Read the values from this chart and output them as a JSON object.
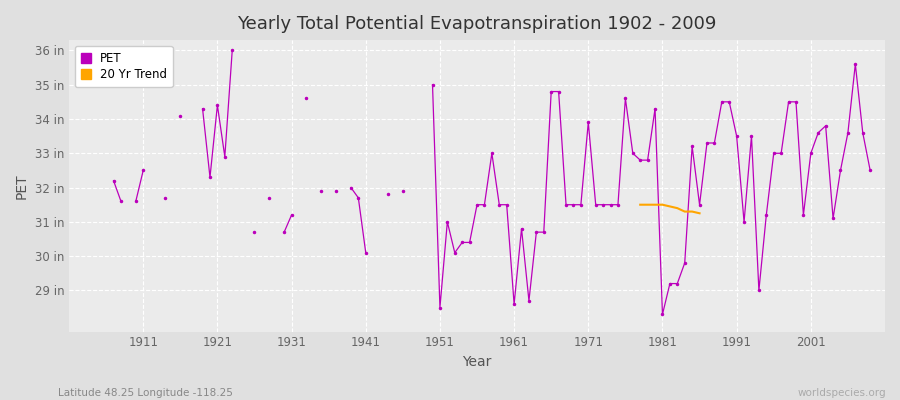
{
  "title": "Yearly Total Potential Evapotranspiration 1902 - 2009",
  "xlabel": "Year",
  "ylabel": "PET",
  "footnote_left": "Latitude 48.25 Longitude -118.25",
  "footnote_right": "worldspecies.org",
  "ylim_low": 27.8,
  "ylim_high": 36.3,
  "yticks": [
    29,
    30,
    31,
    32,
    33,
    34,
    35,
    36
  ],
  "ytick_labels": [
    "29 in",
    "30 in",
    "31 in",
    "32 in",
    "33 in",
    "34 in",
    "35 in",
    "36 in"
  ],
  "xlim_low": 1901,
  "xlim_high": 2011,
  "xtick_positions": [
    1911,
    1921,
    1931,
    1941,
    1951,
    1961,
    1971,
    1981,
    1991,
    2001
  ],
  "bg_color": "#e0e0e0",
  "plot_bg_color": "#ebebeb",
  "pet_color": "#bb00bb",
  "trend_color": "#ffa500",
  "pet_data": {
    "1907": 32.2,
    "1908": 31.6,
    "1910": 31.6,
    "1911": 32.5,
    "1914": 31.7,
    "1916": 34.1,
    "1919": 34.3,
    "1920": 32.3,
    "1921": 34.4,
    "1922": 32.9,
    "1923": 36.0,
    "1926": 30.7,
    "1928": 31.7,
    "1930": 30.7,
    "1931": 31.2,
    "1933": 34.6,
    "1935": 31.9,
    "1937": 31.9,
    "1939": 32.0,
    "1940": 31.7,
    "1941": 30.1,
    "1944": 31.8,
    "1946": 31.9,
    "1950": 35.0,
    "1951": 28.5,
    "1952": 31.0,
    "1953": 30.1,
    "1954": 30.4,
    "1955": 30.4,
    "1956": 31.5,
    "1957": 31.5,
    "1958": 33.0,
    "1959": 31.5,
    "1960": 31.5,
    "1961": 28.6,
    "1962": 30.8,
    "1963": 28.7,
    "1964": 30.7,
    "1965": 30.7,
    "1966": 34.8,
    "1967": 34.8,
    "1968": 31.5,
    "1969": 31.5,
    "1970": 31.5,
    "1971": 33.9,
    "1972": 31.5,
    "1973": 31.5,
    "1974": 31.5,
    "1975": 31.5,
    "1976": 34.6,
    "1977": 33.0,
    "1978": 32.8,
    "1979": 32.8,
    "1980": 34.3,
    "1981": 28.3,
    "1982": 29.2,
    "1983": 29.2,
    "1984": 29.8,
    "1985": 33.2,
    "1986": 31.5,
    "1987": 33.3,
    "1988": 33.3,
    "1989": 34.5,
    "1990": 34.5,
    "1991": 33.5,
    "1992": 31.0,
    "1993": 33.5,
    "1994": 29.0,
    "1995": 31.2,
    "1996": 33.0,
    "1997": 33.0,
    "1998": 34.5,
    "1999": 34.5,
    "2000": 31.2,
    "2001": 33.0,
    "2002": 33.6,
    "2003": 33.8,
    "2004": 31.1,
    "2005": 32.5,
    "2006": 33.6,
    "2007": 35.6,
    "2008": 33.6,
    "2009": 32.5
  },
  "trend_years": [
    1978,
    1979,
    1980,
    1981,
    1982,
    1983,
    1984,
    1985,
    1986
  ],
  "trend_values": [
    31.5,
    31.5,
    31.5,
    31.5,
    31.45,
    31.4,
    31.3,
    31.3,
    31.25
  ]
}
